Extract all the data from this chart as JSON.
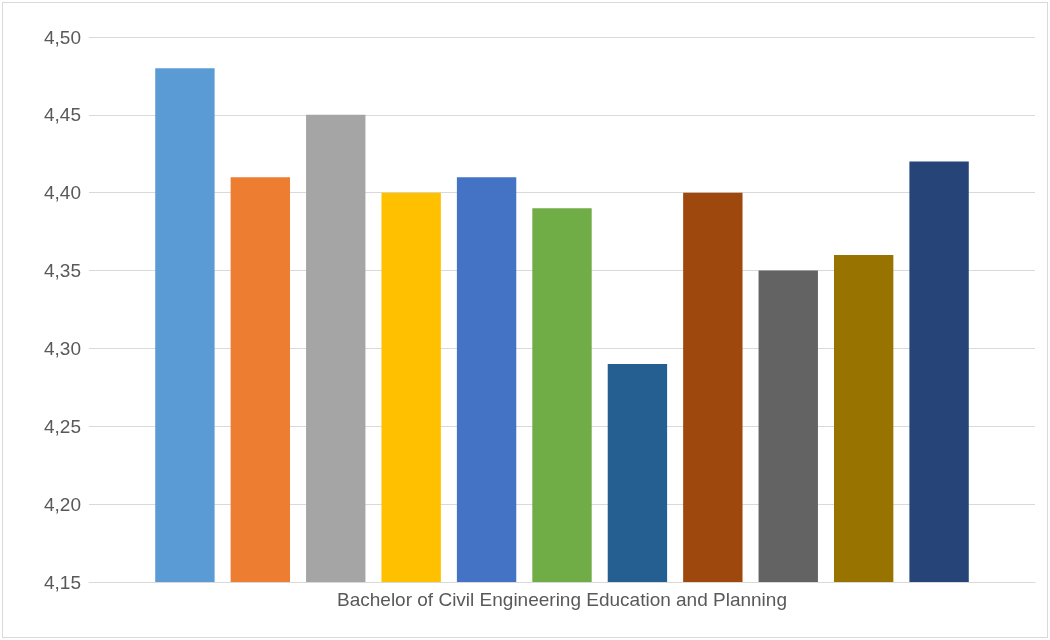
{
  "chart_data": {
    "type": "bar",
    "categories": [
      "Bachelor of Civil Engineering Education and Planning"
    ],
    "series": [
      {
        "color": "#5b9bd5",
        "values": [
          4.48
        ]
      },
      {
        "color": "#ed7d31",
        "values": [
          4.41
        ]
      },
      {
        "color": "#a5a5a5",
        "values": [
          4.45
        ]
      },
      {
        "color": "#ffc000",
        "values": [
          4.4
        ]
      },
      {
        "color": "#4472c4",
        "values": [
          4.41
        ]
      },
      {
        "color": "#70ad47",
        "values": [
          4.39
        ]
      },
      {
        "color": "#255e91",
        "values": [
          4.29
        ]
      },
      {
        "color": "#9e480e",
        "values": [
          4.4
        ]
      },
      {
        "color": "#636363",
        "values": [
          4.35
        ]
      },
      {
        "color": "#997300",
        "values": [
          4.36
        ]
      },
      {
        "color": "#264478",
        "values": [
          4.42
        ]
      }
    ],
    "ylim": [
      4.15,
      4.5
    ],
    "yticks": [
      {
        "value": 4.15,
        "label": "4,15"
      },
      {
        "value": 4.2,
        "label": "4,20"
      },
      {
        "value": 4.25,
        "label": "4,25"
      },
      {
        "value": 4.3,
        "label": "4,30"
      },
      {
        "value": 4.35,
        "label": "4,35"
      },
      {
        "value": 4.4,
        "label": "4,40"
      },
      {
        "value": 4.45,
        "label": "4,45"
      },
      {
        "value": 4.5,
        "label": "4,50"
      }
    ],
    "grid": "y"
  }
}
